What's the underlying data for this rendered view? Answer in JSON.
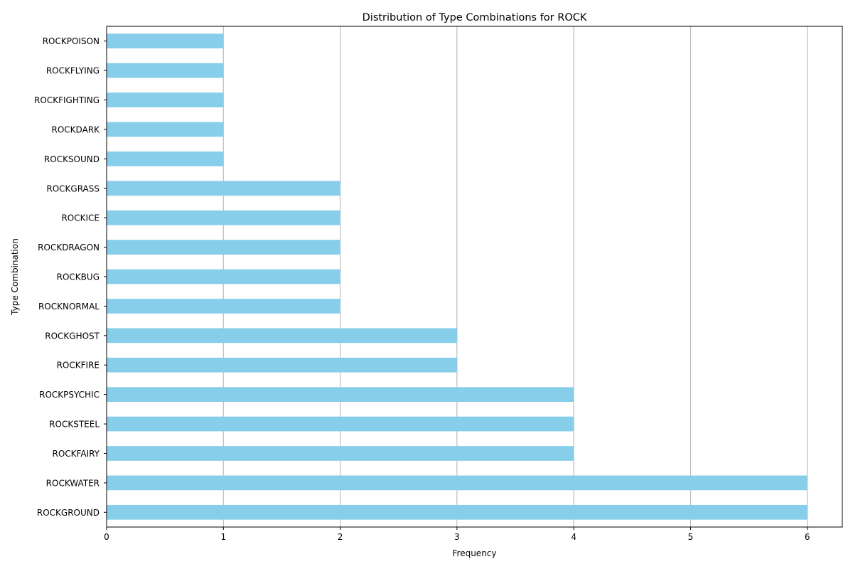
{
  "chart_data": {
    "type": "bar",
    "orientation": "horizontal",
    "title": "Distribution of Type Combinations for ROCK",
    "xlabel": "Frequency",
    "ylabel": "Type Combination",
    "categories": [
      "ROCKGROUND",
      "ROCKWATER",
      "ROCKFAIRY",
      "ROCKSTEEL",
      "ROCKPSYCHIC",
      "ROCKFIRE",
      "ROCKGHOST",
      "ROCKNORMAL",
      "ROCKBUG",
      "ROCKDRAGON",
      "ROCKICE",
      "ROCKGRASS",
      "ROCKSOUND",
      "ROCKDARK",
      "ROCKFIGHTING",
      "ROCKFLYING",
      "ROCKPOISON"
    ],
    "values": [
      6,
      6,
      4,
      4,
      4,
      3,
      3,
      2,
      2,
      2,
      2,
      2,
      1,
      1,
      1,
      1,
      1
    ],
    "xlim": [
      0,
      6.3
    ],
    "xticks": [
      "0",
      "1",
      "2",
      "3",
      "4",
      "5",
      "6"
    ],
    "grid": "vertical",
    "bar_color": "#87ceeb",
    "grid_color": "#b0b0b0"
  }
}
